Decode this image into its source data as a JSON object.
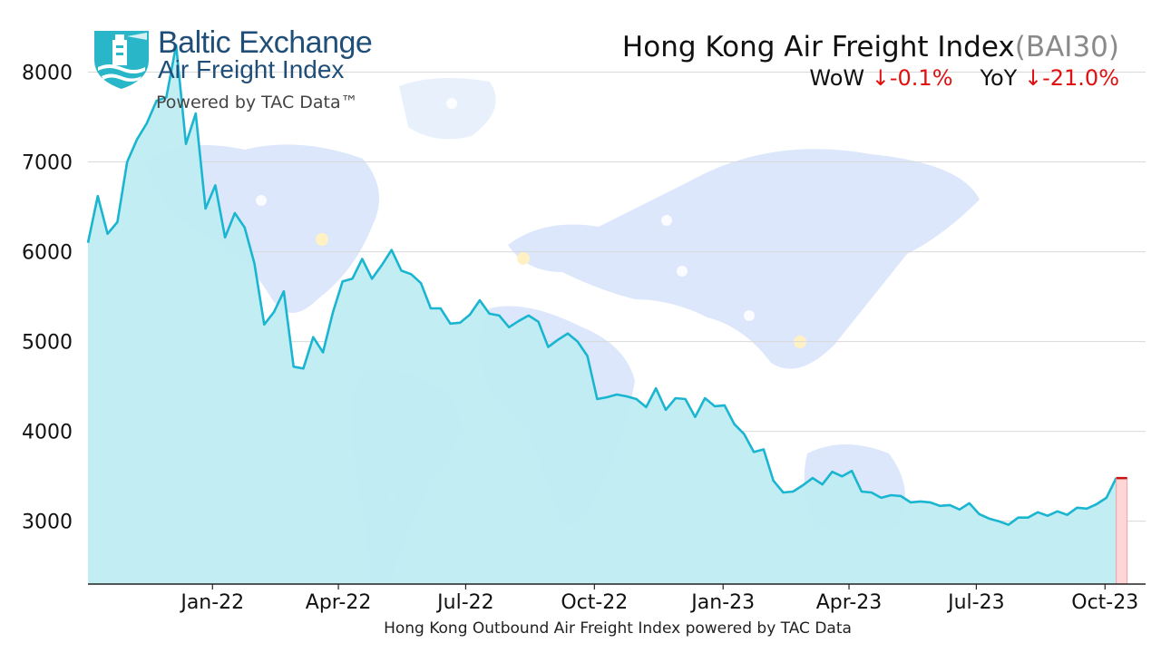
{
  "header": {
    "title": "Hong Kong Air Freight Index",
    "title_code": "(BAI30)",
    "wow_label": "WoW",
    "wow_arrow": "↓",
    "wow_value": "-0.1%",
    "yoy_label": "YoY",
    "yoy_arrow": "↓",
    "yoy_value": "-21.0%"
  },
  "logo": {
    "brand": "Baltic Exchange",
    "product": "Air Freight Index",
    "powered": "Powered by TAC Data™",
    "icon": "lighthouse-shield-icon"
  },
  "caption": "Hong Kong Outbound Air Freight Index powered by TAC Data",
  "colors": {
    "line": "#1ab5d0",
    "fill": "#bfecf2",
    "accent_red": "#e01010"
  },
  "chart_data": {
    "type": "area",
    "x_unit": "week",
    "x_start": "2021-10-04",
    "xlim": [
      "2021-10-04",
      "2023-10-30"
    ],
    "ylim": [
      2300,
      8500
    ],
    "yticks": [
      3000,
      4000,
      5000,
      6000,
      7000,
      8000
    ],
    "xticks": [
      {
        "date": "2022-01-01",
        "label": "Jan-22"
      },
      {
        "date": "2022-04-01",
        "label": "Apr-22"
      },
      {
        "date": "2022-07-01",
        "label": "Jul-22"
      },
      {
        "date": "2022-10-01",
        "label": "Oct-22"
      },
      {
        "date": "2023-01-01",
        "label": "Jan-23"
      },
      {
        "date": "2023-04-01",
        "label": "Apr-23"
      },
      {
        "date": "2023-07-01",
        "label": "Jul-23"
      },
      {
        "date": "2023-10-01",
        "label": "Oct-23"
      }
    ],
    "grid": "horizontal",
    "series": [
      {
        "values": [
          6100,
          6620,
          6200,
          6330,
          7000,
          7250,
          7430,
          7680,
          7720,
          8300,
          7200,
          7540,
          6480,
          6740,
          6160,
          6430,
          6270,
          5870,
          5190,
          5330,
          5560,
          4720,
          4700,
          5050,
          4880,
          5320,
          5670,
          5700,
          5920,
          5700,
          5850,
          6020,
          5790,
          5750,
          5650,
          5370,
          5370,
          5200,
          5210,
          5300,
          5460,
          5310,
          5290,
          5160,
          5230,
          5290,
          5220,
          4940,
          5020,
          5090,
          5000,
          4840,
          4360,
          4380,
          4410,
          4390,
          4360,
          4270,
          4480,
          4240,
          4370,
          4360,
          4160,
          4370,
          4280,
          4290,
          4080,
          3970,
          3770,
          3800,
          3450,
          3320,
          3330,
          3400,
          3480,
          3410,
          3550,
          3500,
          3560,
          3330,
          3320,
          3260,
          3290,
          3280,
          3210,
          3220,
          3210,
          3170,
          3180,
          3130,
          3200,
          3080,
          3030,
          3000,
          2960,
          3040,
          3040,
          3100,
          3060,
          3110,
          3070,
          3150,
          3140,
          3190,
          3260,
          3480
        ]
      }
    ],
    "latest_marker": {
      "value": 3480
    }
  }
}
